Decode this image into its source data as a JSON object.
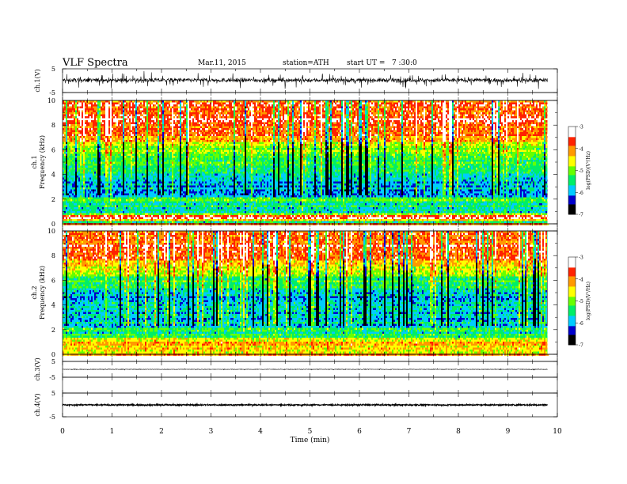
{
  "header": {
    "title": "VLF Spectra",
    "date": "Mar.11, 2015",
    "station": "station=ATH",
    "start_time": "start UT =   7 :30:0"
  },
  "chart_data": [
    {
      "type": "line",
      "name": "ch1-waveform",
      "ylabel": "ch.1(V)",
      "ylim": [
        -5,
        5
      ],
      "yticks": [
        "5",
        "-5"
      ],
      "xlim": [
        0,
        10
      ],
      "data_end": 9.8,
      "offset": 0.2,
      "amplitude_typical": 0.8,
      "spike_amplitude": 3.0,
      "color": "#000000"
    },
    {
      "type": "heatmap",
      "name": "ch1-spectrogram",
      "ylabel": "ch.1\nFrequency (kHz)",
      "ylim": [
        0,
        10
      ],
      "yticks": [
        "0",
        "2",
        "4",
        "6",
        "8",
        "10"
      ],
      "xlim": [
        0,
        10
      ],
      "data_end": 9.8,
      "colorbar": {
        "label": "log(PSD)(V²/Hz)",
        "range": [
          -7,
          -3
        ],
        "ticks": [
          "-3",
          "-4",
          "-5",
          "-6",
          "-7"
        ],
        "colors": [
          "#000000",
          "#0000cc",
          "#00ccff",
          "#00ee66",
          "#66ff00",
          "#ffff00",
          "#ff9900",
          "#ff2200",
          "#ffffff"
        ]
      },
      "profile": [
        {
          "f": 0.0,
          "level": -6.5
        },
        {
          "f": 0.5,
          "level": -3.3
        },
        {
          "f": 1.0,
          "level": -5.8
        },
        {
          "f": 2.0,
          "level": -5.2
        },
        {
          "f": 2.3,
          "level": -6.2
        },
        {
          "f": 4.0,
          "level": -5.6
        },
        {
          "f": 6.0,
          "level": -5.0
        },
        {
          "f": 7.0,
          "level": -4.0
        },
        {
          "f": 8.5,
          "level": -3.6
        },
        {
          "f": 10.0,
          "level": -3.9
        }
      ]
    },
    {
      "type": "heatmap",
      "name": "ch2-spectrogram",
      "ylabel": "ch.2\nFrequency (kHz)",
      "ylim": [
        0,
        10
      ],
      "yticks": [
        "0",
        "2",
        "4",
        "6",
        "8",
        "10"
      ],
      "xlim": [
        0,
        10
      ],
      "data_end": 9.8,
      "colorbar": {
        "label": "log(PSD)(V²/Hz)",
        "range": [
          -7,
          -3
        ],
        "ticks": [
          "-3",
          "-4",
          "-5",
          "-6",
          "-7"
        ],
        "colors": [
          "#000000",
          "#0000cc",
          "#00ccff",
          "#00ee66",
          "#66ff00",
          "#ffff00",
          "#ff9900",
          "#ff2200",
          "#ffffff"
        ]
      },
      "profile": [
        {
          "f": 0.0,
          "level": -4.8
        },
        {
          "f": 1.0,
          "level": -4.3
        },
        {
          "f": 1.6,
          "level": -5.4
        },
        {
          "f": 3.0,
          "level": -5.8
        },
        {
          "f": 4.5,
          "level": -5.9
        },
        {
          "f": 6.0,
          "level": -5.3
        },
        {
          "f": 7.2,
          "level": -4.3
        },
        {
          "f": 8.5,
          "level": -3.6
        },
        {
          "f": 10.0,
          "level": -3.9
        }
      ]
    },
    {
      "type": "line",
      "name": "ch3-waveform",
      "ylabel": "ch.3(V)",
      "ylim": [
        -5,
        5
      ],
      "yticks": [
        "5",
        "-5"
      ],
      "xlim": [
        0,
        10
      ],
      "data_end": 9.8,
      "offset": 0.0,
      "amplitude_typical": 0.15,
      "spike_amplitude": 0.3,
      "color": "#000000"
    },
    {
      "type": "line",
      "name": "ch4-waveform",
      "ylabel": "ch.4(V)",
      "ylim": [
        -5,
        5
      ],
      "yticks": [
        "5",
        "-5"
      ],
      "xlim": [
        0,
        10
      ],
      "data_end": 9.8,
      "offset": 0.0,
      "amplitude_typical": 0.25,
      "spike_amplitude": 0.3,
      "color": "#000000"
    }
  ],
  "xaxis": {
    "label": "Time (min)",
    "ticks": [
      "0",
      "1",
      "2",
      "3",
      "4",
      "5",
      "6",
      "7",
      "8",
      "9",
      "10"
    ],
    "range": [
      0,
      10
    ]
  }
}
